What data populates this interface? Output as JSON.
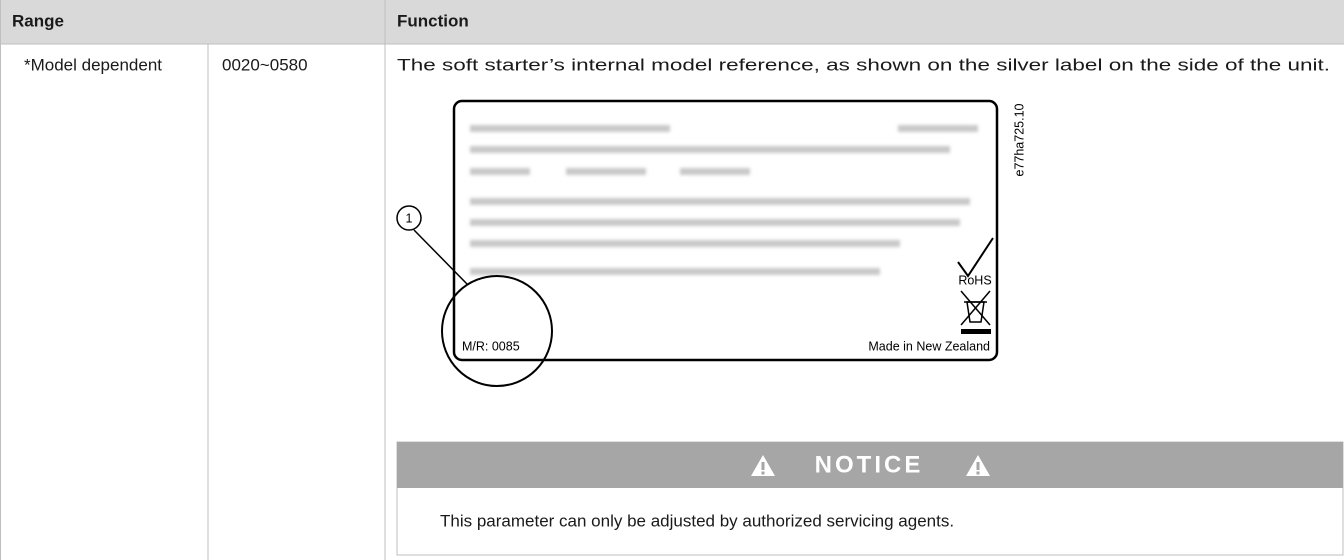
{
  "header": {
    "columns": [
      "Range",
      "Function"
    ]
  },
  "rows": [
    {
      "range": "*Model dependent",
      "value": "0020~0580",
      "function": "The soft starter’s internal model reference, as shown on the silver label on the side of the unit."
    }
  ],
  "figure": {
    "callout": "1",
    "model_reference": "M/R: 0085",
    "origin": "Made in New Zealand",
    "rohs": "RoHS",
    "figure_id": "e77ha725.10"
  },
  "notice": {
    "title": "NOTICE",
    "text": "This parameter can only be adjusted by authorized servicing agents."
  }
}
